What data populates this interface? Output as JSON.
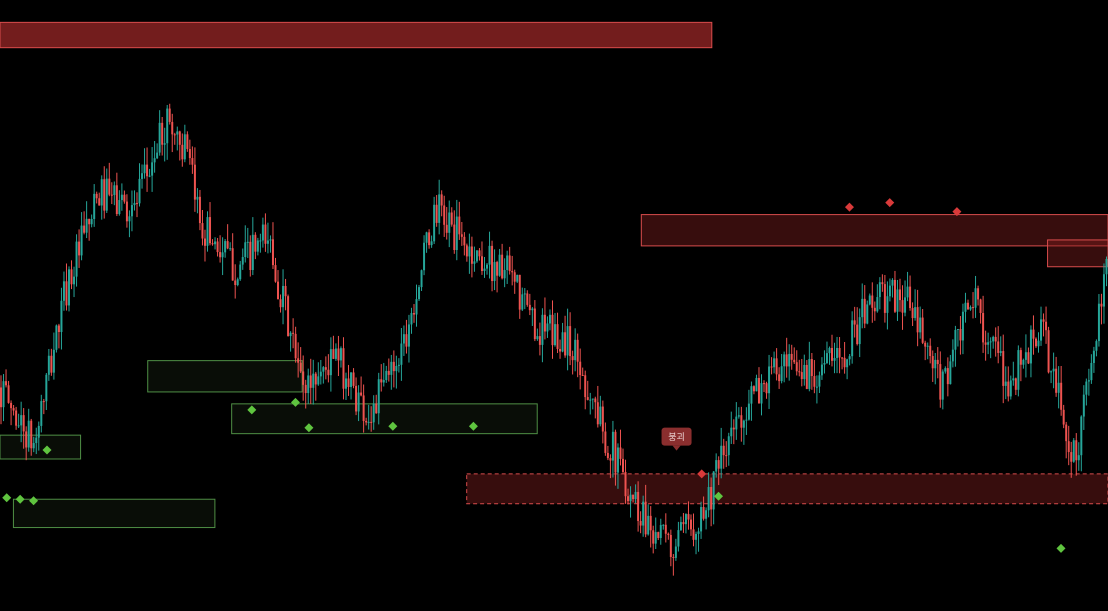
{
  "chart_data": {
    "type": "candlestick",
    "title": "",
    "xlabel": "",
    "ylabel": "",
    "x_range": [
      0,
      330
    ],
    "ylim": [
      93,
      134
    ],
    "grid": false,
    "legend": "none",
    "background": "#000000",
    "up_color": "#26a69a",
    "down_color": "#ef5350",
    "path": [
      [
        0,
        108
      ],
      [
        10,
        104
      ],
      [
        20,
        115
      ],
      [
        30,
        121
      ],
      [
        40,
        120
      ],
      [
        50,
        126
      ],
      [
        55,
        124
      ],
      [
        60,
        119
      ],
      [
        70,
        116
      ],
      [
        80,
        118
      ],
      [
        90,
        108
      ],
      [
        100,
        110
      ],
      [
        110,
        106
      ],
      [
        120,
        111
      ],
      [
        130,
        120
      ],
      [
        140,
        117
      ],
      [
        150,
        116
      ],
      [
        160,
        112
      ],
      [
        170,
        111
      ],
      [
        180,
        105
      ],
      [
        190,
        100
      ],
      [
        200,
        97
      ],
      [
        210,
        100
      ],
      [
        220,
        106
      ],
      [
        230,
        109
      ],
      [
        240,
        109
      ],
      [
        250,
        110
      ],
      [
        260,
        114
      ],
      [
        270,
        114
      ],
      [
        280,
        108
      ],
      [
        290,
        114
      ],
      [
        300,
        108
      ],
      [
        310,
        112
      ],
      [
        320,
        103
      ],
      [
        330,
        116
      ]
    ],
    "supply_zones": [
      {
        "x_start": 0,
        "x_end": 212,
        "y_low": 130.8,
        "y_high": 132.5,
        "style": "solid"
      },
      {
        "x_start": 191,
        "x_end": 330,
        "y_low": 117.5,
        "y_high": 119.6,
        "style": "solid"
      },
      {
        "x_start": 312,
        "x_end": 330,
        "y_low": 116.1,
        "y_high": 117.9,
        "style": "solid"
      },
      {
        "x_start": 139,
        "x_end": 330,
        "y_low": 100.2,
        "y_high": 102.2,
        "style": "dashed"
      }
    ],
    "demand_zones": [
      {
        "x_start": 0,
        "x_end": 24,
        "y_low": 103.2,
        "y_high": 104.8
      },
      {
        "x_start": 44,
        "x_end": 90,
        "y_low": 107.7,
        "y_high": 109.8
      },
      {
        "x_start": 69,
        "x_end": 160,
        "y_low": 104.9,
        "y_high": 106.9
      },
      {
        "x_start": 4,
        "x_end": 64,
        "y_low": 98.6,
        "y_high": 100.5
      }
    ],
    "buy_markers": [
      {
        "x": 2,
        "y": 100.6
      },
      {
        "x": 6,
        "y": 100.5
      },
      {
        "x": 10,
        "y": 100.4
      },
      {
        "x": 14,
        "y": 103.8
      },
      {
        "x": 75,
        "y": 106.5
      },
      {
        "x": 88,
        "y": 107.0
      },
      {
        "x": 92,
        "y": 105.3
      },
      {
        "x": 117,
        "y": 105.4
      },
      {
        "x": 141,
        "y": 105.4
      },
      {
        "x": 214,
        "y": 100.7
      },
      {
        "x": 316,
        "y": 97.2
      }
    ],
    "sell_markers": [
      {
        "x": 209,
        "y": 102.2
      },
      {
        "x": 253,
        "y": 120.1
      },
      {
        "x": 265,
        "y": 120.4
      },
      {
        "x": 285,
        "y": 119.8
      }
    ],
    "annotations": [
      {
        "text": "붕괴",
        "x": 201.5,
        "y": 104.7
      }
    ]
  }
}
